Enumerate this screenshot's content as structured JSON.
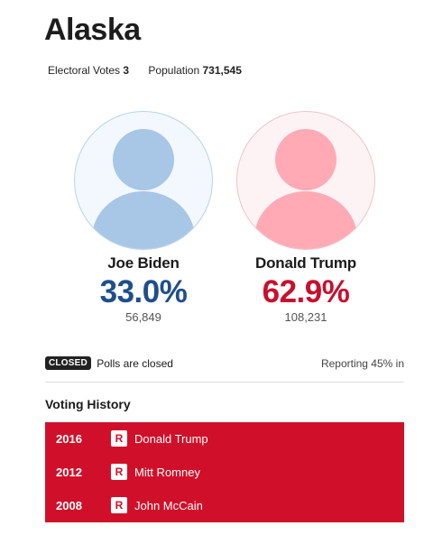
{
  "state": {
    "name": "Alaska"
  },
  "stats": {
    "electoral_label": "Electoral Votes",
    "electoral_value": "3",
    "population_label": "Population",
    "population_value": "731,545"
  },
  "candidates": [
    {
      "name": "Joe Biden",
      "percent": "33.0%",
      "votes": "56,849",
      "party": "dem",
      "icon": "person-avatar-icon",
      "color": "#1f4e8c"
    },
    {
      "name": "Donald Trump",
      "percent": "62.9%",
      "votes": "108,231",
      "party": "rep",
      "icon": "person-avatar-icon",
      "color": "#c8102e"
    }
  ],
  "status": {
    "badge": "CLOSED",
    "text": "Polls are closed",
    "reporting": "Reporting 45% in"
  },
  "voting_history": {
    "title": "Voting History",
    "color": "#d0102a",
    "rows": [
      {
        "year": "2016",
        "party": "R",
        "candidate": "Donald Trump"
      },
      {
        "year": "2012",
        "party": "R",
        "candidate": "Mitt Romney"
      },
      {
        "year": "2008",
        "party": "R",
        "candidate": "John McCain"
      }
    ]
  }
}
